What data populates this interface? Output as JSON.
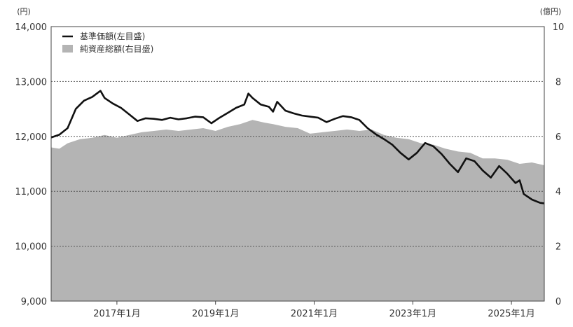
{
  "chart_data": {
    "type": "line",
    "title": "",
    "left_axis": {
      "unit": "(円)",
      "ylim": [
        9000,
        14000
      ],
      "ticks": [
        9000,
        10000,
        11000,
        12000,
        13000,
        14000
      ],
      "tick_labels": [
        "9,000",
        "10,000",
        "11,000",
        "12,000",
        "13,000",
        "14,000"
      ]
    },
    "right_axis": {
      "unit": "(億円)",
      "ylim": [
        0,
        10
      ],
      "ticks": [
        0,
        2,
        4,
        6,
        8,
        10
      ],
      "tick_labels": [
        "0",
        "2",
        "4",
        "6",
        "8",
        "10"
      ]
    },
    "x_axis": {
      "range": [
        "2015-09",
        "2025-09"
      ],
      "tick_positions": [
        "2017-01",
        "2019-01",
        "2021-01",
        "2023-01",
        "2025-01"
      ],
      "tick_labels": [
        "2017年1月",
        "2019年1月",
        "2021年1月",
        "2023年1月",
        "2025年1月"
      ]
    },
    "grid": "horizontal-dotted",
    "legend_position": "top-left",
    "legend": [
      "基準価額(左目盛)",
      "純資産総額(右目盛)"
    ],
    "series": [
      {
        "name": "基準価額(左目盛)",
        "axis": "left",
        "kind": "line",
        "color": "#111111",
        "points": [
          [
            "2015-09",
            11980
          ],
          [
            "2015-11",
            12030
          ],
          [
            "2016-01",
            12150
          ],
          [
            "2016-03",
            12500
          ],
          [
            "2016-05",
            12650
          ],
          [
            "2016-07",
            12720
          ],
          [
            "2016-09",
            12830
          ],
          [
            "2016-10",
            12700
          ],
          [
            "2016-12",
            12600
          ],
          [
            "2017-02",
            12520
          ],
          [
            "2017-04",
            12400
          ],
          [
            "2017-06",
            12280
          ],
          [
            "2017-08",
            12330
          ],
          [
            "2017-10",
            12320
          ],
          [
            "2017-12",
            12300
          ],
          [
            "2018-02",
            12340
          ],
          [
            "2018-04",
            12310
          ],
          [
            "2018-06",
            12330
          ],
          [
            "2018-08",
            12360
          ],
          [
            "2018-10",
            12350
          ],
          [
            "2018-12",
            12240
          ],
          [
            "2019-02",
            12340
          ],
          [
            "2019-04",
            12430
          ],
          [
            "2019-06",
            12520
          ],
          [
            "2019-08",
            12580
          ],
          [
            "2019-09",
            12780
          ],
          [
            "2019-10",
            12700
          ],
          [
            "2019-12",
            12580
          ],
          [
            "2020-02",
            12540
          ],
          [
            "2020-03",
            12450
          ],
          [
            "2020-04",
            12630
          ],
          [
            "2020-06",
            12470
          ],
          [
            "2020-08",
            12420
          ],
          [
            "2020-10",
            12380
          ],
          [
            "2020-12",
            12360
          ],
          [
            "2021-02",
            12340
          ],
          [
            "2021-04",
            12260
          ],
          [
            "2021-06",
            12320
          ],
          [
            "2021-08",
            12370
          ],
          [
            "2021-10",
            12350
          ],
          [
            "2021-12",
            12300
          ],
          [
            "2022-02",
            12150
          ],
          [
            "2022-04",
            12040
          ],
          [
            "2022-06",
            11950
          ],
          [
            "2022-08",
            11850
          ],
          [
            "2022-10",
            11700
          ],
          [
            "2022-12",
            11580
          ],
          [
            "2023-02",
            11700
          ],
          [
            "2023-04",
            11880
          ],
          [
            "2023-06",
            11820
          ],
          [
            "2023-08",
            11680
          ],
          [
            "2023-10",
            11500
          ],
          [
            "2023-12",
            11350
          ],
          [
            "2024-02",
            11600
          ],
          [
            "2024-04",
            11550
          ],
          [
            "2024-06",
            11380
          ],
          [
            "2024-08",
            11250
          ],
          [
            "2024-10",
            11460
          ],
          [
            "2024-12",
            11320
          ],
          [
            "2025-02",
            11150
          ],
          [
            "2025-03",
            11200
          ],
          [
            "2025-04",
            10950
          ],
          [
            "2025-06",
            10850
          ],
          [
            "2025-08",
            10790
          ],
          [
            "2025-09",
            10780
          ]
        ]
      },
      {
        "name": "純資産総額(右目盛)",
        "axis": "right",
        "kind": "area",
        "color": "#b4b4b4",
        "points": [
          [
            "2015-09",
            5.6
          ],
          [
            "2015-11",
            5.55
          ],
          [
            "2016-01",
            5.75
          ],
          [
            "2016-04",
            5.9
          ],
          [
            "2016-07",
            5.95
          ],
          [
            "2016-10",
            6.05
          ],
          [
            "2017-01",
            5.95
          ],
          [
            "2017-04",
            6.05
          ],
          [
            "2017-07",
            6.15
          ],
          [
            "2017-10",
            6.2
          ],
          [
            "2018-01",
            6.25
          ],
          [
            "2018-04",
            6.2
          ],
          [
            "2018-07",
            6.25
          ],
          [
            "2018-10",
            6.3
          ],
          [
            "2019-01",
            6.2
          ],
          [
            "2019-04",
            6.35
          ],
          [
            "2019-07",
            6.45
          ],
          [
            "2019-10",
            6.6
          ],
          [
            "2020-01",
            6.5
          ],
          [
            "2020-03",
            6.45
          ],
          [
            "2020-06",
            6.35
          ],
          [
            "2020-09",
            6.3
          ],
          [
            "2020-12",
            6.1
          ],
          [
            "2021-03",
            6.15
          ],
          [
            "2021-06",
            6.2
          ],
          [
            "2021-09",
            6.25
          ],
          [
            "2021-12",
            6.2
          ],
          [
            "2022-03",
            6.25
          ],
          [
            "2022-06",
            6.05
          ],
          [
            "2022-09",
            5.95
          ],
          [
            "2022-12",
            5.9
          ],
          [
            "2023-03",
            5.75
          ],
          [
            "2023-06",
            5.7
          ],
          [
            "2023-09",
            5.55
          ],
          [
            "2023-12",
            5.45
          ],
          [
            "2024-03",
            5.4
          ],
          [
            "2024-06",
            5.2
          ],
          [
            "2024-09",
            5.2
          ],
          [
            "2024-12",
            5.15
          ],
          [
            "2025-03",
            5.0
          ],
          [
            "2025-06",
            5.05
          ],
          [
            "2025-09",
            4.95
          ]
        ]
      }
    ]
  }
}
